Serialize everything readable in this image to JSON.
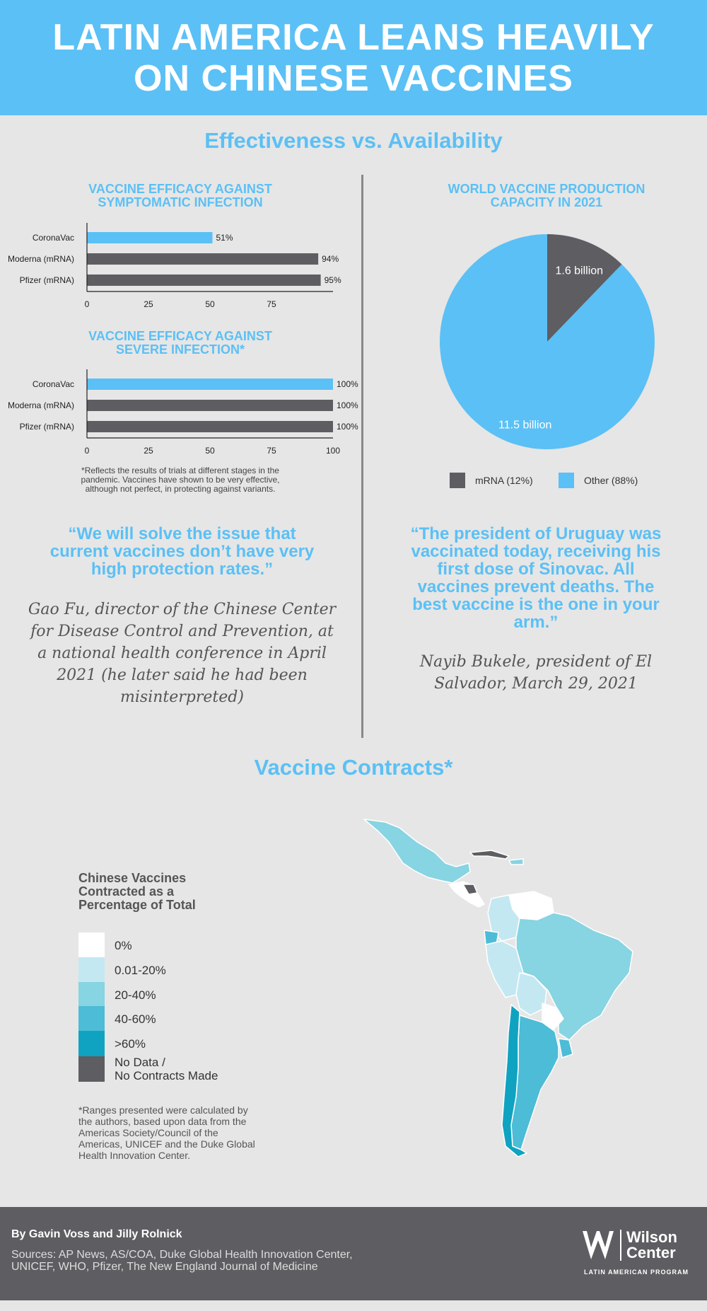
{
  "header": {
    "title_line1": "LATIN AMERICA LEANS HEAVILY",
    "title_line2": "ON CHINESE VACCINES"
  },
  "subtitle": "Effectiveness vs. Availability",
  "colors": {
    "blue": "#5bc0f5",
    "gray": "#5e5d61",
    "white": "#ffffff",
    "pale": "#c4e8f2",
    "light": "#87d4e2",
    "mid": "#4dbcd6",
    "dark": "#0fa3c1",
    "nodata": "#5e5d61"
  },
  "chart_data": [
    {
      "type": "bar",
      "orientation": "horizontal",
      "title_line1": "VACCINE EFFICACY AGAINST",
      "title_line2": "SYMPTOMATIC INFECTION",
      "categories": [
        "CoronaVac",
        "Moderna (mRNA)",
        "Pfizer (mRNA)"
      ],
      "values": [
        51,
        94,
        95
      ],
      "labels": [
        "51%",
        "94%",
        "95%"
      ],
      "colors": [
        "#5bc0f5",
        "#5e5d61",
        "#5e5d61"
      ],
      "ticks": [
        "0",
        "25",
        "50",
        "75"
      ],
      "xlim": [
        0,
        100
      ]
    },
    {
      "type": "bar",
      "orientation": "horizontal",
      "title_line1": "VACCINE EFFICACY AGAINST",
      "title_line2": "SEVERE INFECTION*",
      "categories": [
        "CoronaVac",
        "Moderna (mRNA)",
        "Pfizer (mRNA)"
      ],
      "values": [
        100,
        100,
        100
      ],
      "labels": [
        "100%",
        "100%",
        "100%"
      ],
      "colors": [
        "#5bc0f5",
        "#5e5d61",
        "#5e5d61"
      ],
      "ticks": [
        "0",
        "25",
        "50",
        "75",
        "100"
      ],
      "xlim": [
        0,
        100
      ]
    },
    {
      "type": "pie",
      "title_line1": "WORLD VACCINE PRODUCTION",
      "title_line2": "CAPACITY IN 2021",
      "slices": [
        {
          "name": "mRNA (12%)",
          "value": 1.6,
          "label": "1.6 billion",
          "color": "#5e5d61"
        },
        {
          "name": "Other (88%)",
          "value": 11.5,
          "label": "11.5 billion",
          "color": "#5bc0f5"
        }
      ],
      "legend_position": "bottom"
    }
  ],
  "footnote": {
    "line1": "*Reflects the results of trials at different stages in the",
    "line2": "pandemic. Vaccines have shown to be very effective,",
    "line3": "although not perfect, in protecting against variants."
  },
  "quote_left": {
    "lines": [
      "“We will solve the issue that",
      "current vaccines don’t have very",
      "high protection rates.”"
    ],
    "attribution": [
      "Gao Fu, director of the Chinese Center",
      "for Disease Control and Prevention, at",
      "a national health conference in April",
      "2021 (he later said he had been",
      "misinterpreted)"
    ]
  },
  "quote_right": {
    "lines": [
      "“The president of Uruguay was",
      "vaccinated today, receiving his",
      "first dose of Sinovac. All",
      "vaccines prevent deaths. The",
      "best vaccine is the one in your",
      "arm.”"
    ],
    "attribution": [
      "Nayib Bukele, president of El",
      "Salvador, March 29, 2021"
    ]
  },
  "section2_title": "Vaccine Contracts*",
  "map_legend": {
    "title": [
      "Chinese Vaccines",
      "Contracted as a",
      "Percentage of Total"
    ],
    "items": [
      {
        "label": "0%",
        "color": "#ffffff"
      },
      {
        "label": "0.01-20%",
        "color": "#c4e8f2"
      },
      {
        "label": "20-40%",
        "color": "#87d4e2"
      },
      {
        "label": "40-60%",
        "color": "#4dbcd6"
      },
      {
        "label": ">60%",
        "color": "#0fa3c1"
      },
      {
        "label": "No Data /",
        "label2": "No Contracts Made",
        "color": "#5e5d61"
      }
    ]
  },
  "map_note": [
    "*Ranges presented were calculated by",
    "the authors, based upon data from the",
    "Americas Society/Council of the",
    "Americas, UNICEF and the Duke Global",
    "Health Innovation Center."
  ],
  "footer": {
    "authors": "By Gavin Voss and Jilly Rolnick",
    "sources_line1": "Sources: AP News, AS/COA, Duke Global Health Innovation Center,",
    "sources_line2": "UNICEF, WHO, Pfizer, The New England Journal of Medicine",
    "logo_line1": "Wilson",
    "logo_line2": "Center",
    "program": "LATIN AMERICAN PROGRAM"
  }
}
